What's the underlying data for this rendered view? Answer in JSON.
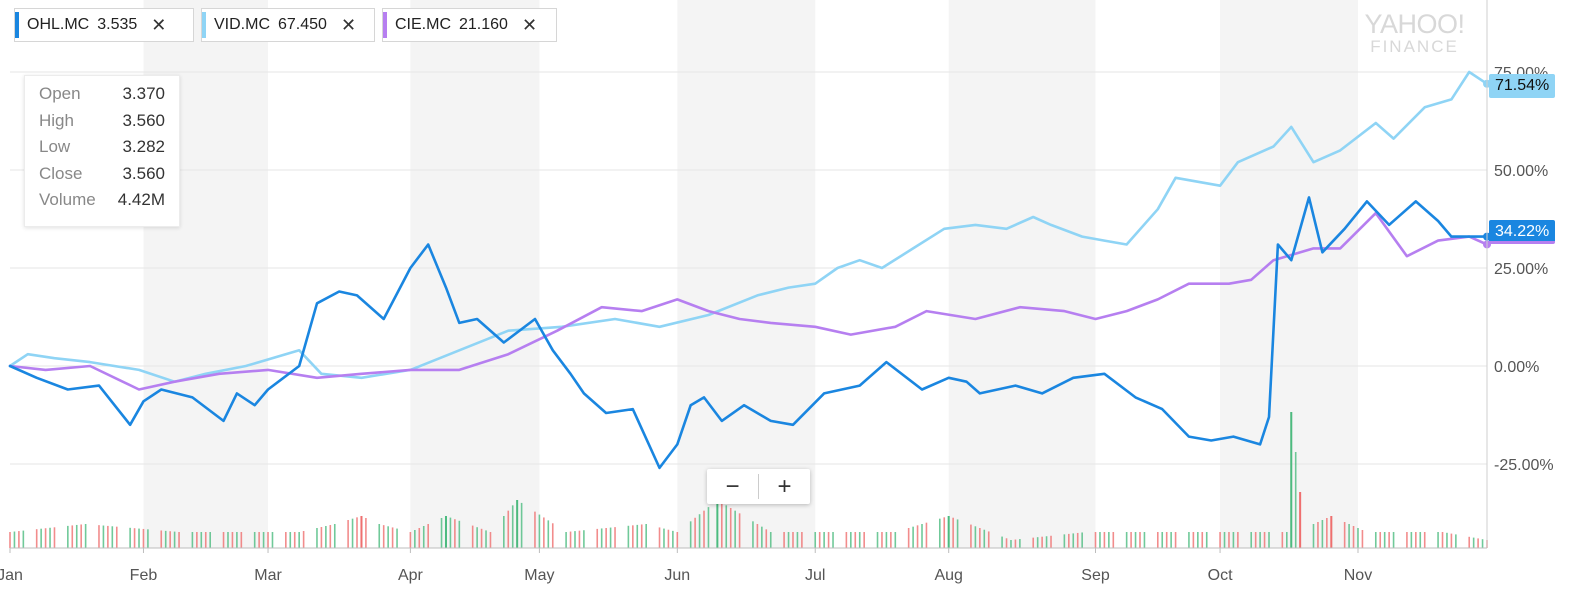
{
  "tickers": [
    {
      "symbol": "OHL.MC",
      "price": "3.535",
      "color": "#1a86e0"
    },
    {
      "symbol": "VID.MC",
      "price": "67.450",
      "color": "#8fd4f5"
    },
    {
      "symbol": "CIE.MC",
      "price": "21.160",
      "color": "#b67ff0"
    }
  ],
  "close_glyph": "✕",
  "ohlc": {
    "rows": [
      {
        "label": "Open",
        "value": "3.370"
      },
      {
        "label": "High",
        "value": "3.560"
      },
      {
        "label": "Low",
        "value": "3.282"
      },
      {
        "label": "Close",
        "value": "3.560"
      },
      {
        "label": "Volume",
        "value": "4.42M"
      }
    ]
  },
  "watermark": {
    "line1": "YAHOO!",
    "line2": "FINANCE"
  },
  "zoom": {
    "minus": "−",
    "plus": "+"
  },
  "end_labels": {
    "vid": "71.54%",
    "ohl": "34.22%"
  },
  "chart_data": {
    "type": "line",
    "y_unit": "%",
    "ylim": [
      -37,
      95
    ],
    "y_ticks": [
      75,
      50,
      25,
      0,
      -25
    ],
    "y_tick_labels": [
      "75.00%",
      "50.00%",
      "25.00%",
      "0.00%",
      "-25.00%"
    ],
    "x_start": "2018-01-02",
    "x_end": "2018-11-30",
    "x_tick_dates": [
      "2018-01-02",
      "2018-02-01",
      "2018-03-01",
      "2018-04-02",
      "2018-05-01",
      "2018-06-01",
      "2018-07-02",
      "2018-08-01",
      "2018-09-03",
      "2018-10-01",
      "2018-11-01"
    ],
    "x_tick_labels": [
      "Jan",
      "Feb",
      "Mar",
      "Apr",
      "May",
      "Jun",
      "Jul",
      "Aug",
      "Sep",
      "Oct",
      "Nov"
    ],
    "grid": true,
    "series": [
      {
        "name": "VID.MC",
        "color": "#8fd4f5",
        "x": [
          "2018-01-02",
          "2018-01-06",
          "2018-01-12",
          "2018-01-20",
          "2018-01-31",
          "2018-02-08",
          "2018-02-15",
          "2018-02-24",
          "2018-03-08",
          "2018-03-13",
          "2018-03-22",
          "2018-04-02",
          "2018-04-13",
          "2018-04-24",
          "2018-05-06",
          "2018-05-18",
          "2018-05-28",
          "2018-06-08",
          "2018-06-19",
          "2018-06-26",
          "2018-07-02",
          "2018-07-07",
          "2018-07-12",
          "2018-07-17",
          "2018-07-24",
          "2018-07-31",
          "2018-08-07",
          "2018-08-14",
          "2018-08-20",
          "2018-08-24",
          "2018-08-31",
          "2018-09-05",
          "2018-09-10",
          "2018-09-17",
          "2018-09-21",
          "2018-10-01",
          "2018-10-05",
          "2018-10-13",
          "2018-10-17",
          "2018-10-22",
          "2018-10-28",
          "2018-11-05",
          "2018-11-09",
          "2018-11-16",
          "2018-11-22",
          "2018-11-26",
          "2018-11-30"
        ],
        "y": [
          0,
          3,
          2,
          1,
          -1,
          -4,
          -2,
          0,
          4,
          -2,
          -3,
          -1,
          4,
          9,
          10,
          12,
          10,
          13,
          18,
          20,
          21,
          25,
          27,
          25,
          30,
          35,
          36,
          35,
          38,
          36,
          33,
          32,
          31,
          40,
          48,
          46,
          52,
          56,
          61,
          52,
          55,
          62,
          58,
          66,
          68,
          75,
          72
        ]
      },
      {
        "name": "CIE.MC",
        "color": "#b67ff0",
        "x": [
          "2018-01-02",
          "2018-01-10",
          "2018-01-20",
          "2018-01-31",
          "2018-02-08",
          "2018-02-18",
          "2018-03-01",
          "2018-03-12",
          "2018-03-22",
          "2018-04-02",
          "2018-04-13",
          "2018-04-24",
          "2018-05-05",
          "2018-05-15",
          "2018-05-24",
          "2018-06-01",
          "2018-06-08",
          "2018-06-15",
          "2018-06-22",
          "2018-07-02",
          "2018-07-10",
          "2018-07-20",
          "2018-07-27",
          "2018-08-07",
          "2018-08-17",
          "2018-08-27",
          "2018-09-03",
          "2018-09-10",
          "2018-09-17",
          "2018-09-24",
          "2018-10-03",
          "2018-10-08",
          "2018-10-13",
          "2018-10-22",
          "2018-10-28",
          "2018-11-05",
          "2018-11-12",
          "2018-11-19",
          "2018-11-26",
          "2018-11-30"
        ],
        "y": [
          0,
          -1,
          0,
          -6,
          -4,
          -2,
          -1,
          -3,
          -2,
          -1,
          -1,
          3,
          9,
          15,
          14,
          17,
          14,
          12,
          11,
          10,
          8,
          10,
          14,
          12,
          15,
          14,
          12,
          14,
          17,
          21,
          21,
          22,
          27,
          30,
          30,
          39,
          28,
          32,
          33,
          31
        ]
      },
      {
        "name": "OHL.MC",
        "color": "#1a86e0",
        "x": [
          "2018-01-02",
          "2018-01-08",
          "2018-01-15",
          "2018-01-22",
          "2018-01-29",
          "2018-02-01",
          "2018-02-05",
          "2018-02-12",
          "2018-02-19",
          "2018-02-22",
          "2018-02-26",
          "2018-03-01",
          "2018-03-08",
          "2018-03-12",
          "2018-03-17",
          "2018-03-21",
          "2018-03-27",
          "2018-04-02",
          "2018-04-06",
          "2018-04-10",
          "2018-04-13",
          "2018-04-17",
          "2018-04-23",
          "2018-04-30",
          "2018-05-04",
          "2018-05-08",
          "2018-05-11",
          "2018-05-16",
          "2018-05-22",
          "2018-05-28",
          "2018-06-01",
          "2018-06-04",
          "2018-06-07",
          "2018-06-11",
          "2018-06-16",
          "2018-06-22",
          "2018-06-27",
          "2018-07-04",
          "2018-07-12",
          "2018-07-18",
          "2018-07-26",
          "2018-08-01",
          "2018-08-05",
          "2018-08-08",
          "2018-08-16",
          "2018-08-22",
          "2018-08-29",
          "2018-09-05",
          "2018-09-12",
          "2018-09-18",
          "2018-09-24",
          "2018-09-29",
          "2018-10-04",
          "2018-10-10",
          "2018-10-12",
          "2018-10-14",
          "2018-10-17",
          "2018-10-21",
          "2018-10-24",
          "2018-10-29",
          "2018-11-03",
          "2018-11-08",
          "2018-11-14",
          "2018-11-19",
          "2018-11-22",
          "2018-11-25",
          "2018-11-30"
        ],
        "y": [
          0,
          -3,
          -6,
          -5,
          -15,
          -9,
          -6,
          -8,
          -14,
          -7,
          -10,
          -6,
          0,
          16,
          19,
          18,
          12,
          25,
          31,
          20,
          11,
          12,
          6,
          12,
          4,
          -2,
          -7,
          -12,
          -11,
          -26,
          -20,
          -10,
          -8,
          -14,
          -10,
          -14,
          -15,
          -7,
          -5,
          1,
          -6,
          -3,
          -4,
          -7,
          -5,
          -7,
          -3,
          -2,
          -8,
          -11,
          -18,
          -19,
          -18,
          -20,
          -13,
          31,
          27,
          43,
          29,
          35,
          42,
          36,
          42,
          37,
          33,
          33,
          33
        ]
      }
    ],
    "volume": {
      "x": [
        "2018-01-02",
        "2018-01-19",
        "2018-02-09",
        "2018-03-08",
        "2018-03-16",
        "2018-03-22",
        "2018-03-26",
        "2018-04-02",
        "2018-04-10",
        "2018-04-20",
        "2018-04-26",
        "2018-05-07",
        "2018-05-25",
        "2018-06-01",
        "2018-06-10",
        "2018-06-22",
        "2018-07-01",
        "2018-07-20",
        "2018-08-01",
        "2018-08-15",
        "2018-09-01",
        "2018-09-20",
        "2018-10-03",
        "2018-10-16",
        "2018-10-17",
        "2018-10-19",
        "2018-10-22",
        "2018-10-26",
        "2018-11-03",
        "2018-11-20",
        "2018-11-30"
      ],
      "y": [
        2,
        3,
        2,
        2,
        3,
        4,
        3,
        2,
        4,
        2,
        6,
        2,
        3,
        2,
        6,
        2,
        2,
        2,
        4,
        1,
        2,
        2,
        2,
        2,
        17,
        7,
        3,
        4,
        2,
        2,
        1
      ]
    }
  }
}
